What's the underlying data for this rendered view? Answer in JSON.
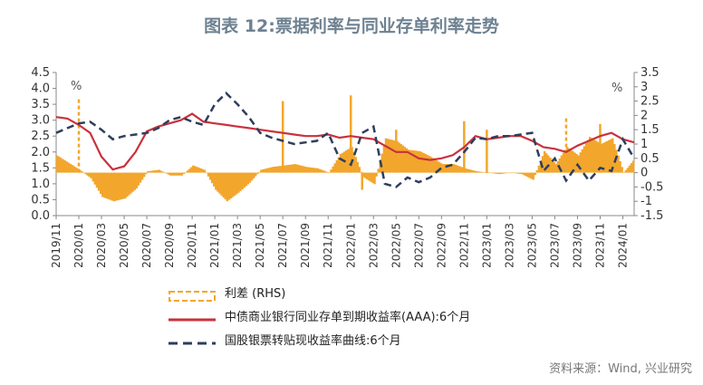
{
  "title": "图表 12:票据利率与同业存单利率走势",
  "source": "资料来源：Wind, 兴业研究",
  "chart_data": {
    "type": "line",
    "left_axis": {
      "unit": "%",
      "ylim": [
        0,
        4.5
      ],
      "ticks": [
        "0.0",
        "0.5",
        "1.0",
        "1.5",
        "2.0",
        "2.5",
        "3.0",
        "3.5",
        "4.0",
        "4.5"
      ]
    },
    "right_axis": {
      "unit": "%",
      "ylim": [
        -1.5,
        3.5
      ],
      "ticks": [
        "-1.5",
        "-1",
        "-0.5",
        "0",
        "0.5",
        "1",
        "1.5",
        "2",
        "2.5",
        "3",
        "3.5"
      ]
    },
    "x_range": [
      "2019-11",
      "2024-02"
    ],
    "x_tick_labels": [
      "2019/11",
      "2020/01",
      "2020/03",
      "2020/05",
      "2020/07",
      "2020/09",
      "2020/11",
      "2021/01",
      "2021/03",
      "2021/05",
      "2021/07",
      "2021/09",
      "2021/11",
      "2022/01",
      "2022/03",
      "2022/05",
      "2022/07",
      "2022/09",
      "2022/11",
      "2023/01",
      "2023/03",
      "2023/05",
      "2023/07",
      "2023/09",
      "2023/11",
      "2024/01"
    ],
    "colors": {
      "spread": "#f2a62c",
      "ncd": "#c8323c",
      "bill": "#2e3e5c"
    },
    "legend": [
      {
        "key": "spread",
        "label": "利差 (RHS)"
      },
      {
        "key": "ncd",
        "label": "中债商业银行同业存单到期收益率(AAA):6个月"
      },
      {
        "key": "bill",
        "label": "国股银票转贴现收益率曲线:6个月"
      }
    ],
    "series": [
      {
        "key": "ncd",
        "name": "中债商业银行同业存单到期收益率(AAA):6个月",
        "axis": "left",
        "x": [
          "2019-11",
          "2019-12",
          "2020-01",
          "2020-02",
          "2020-03",
          "2020-04",
          "2020-05",
          "2020-06",
          "2020-07",
          "2020-08",
          "2020-09",
          "2020-10",
          "2020-11",
          "2020-12",
          "2021-01",
          "2021-02",
          "2021-03",
          "2021-04",
          "2021-05",
          "2021-06",
          "2021-07",
          "2021-08",
          "2021-09",
          "2021-10",
          "2021-11",
          "2021-12",
          "2022-01",
          "2022-02",
          "2022-03",
          "2022-04",
          "2022-05",
          "2022-06",
          "2022-07",
          "2022-08",
          "2022-09",
          "2022-10",
          "2022-11",
          "2022-12",
          "2023-01",
          "2023-02",
          "2023-03",
          "2023-04",
          "2023-05",
          "2023-06",
          "2023-07",
          "2023-08",
          "2023-09",
          "2023-10",
          "2023-11",
          "2023-12",
          "2024-01",
          "2024-02"
        ],
        "y": [
          3.1,
          3.05,
          2.85,
          2.6,
          1.85,
          1.45,
          1.55,
          2.0,
          2.65,
          2.8,
          2.9,
          3.0,
          3.2,
          2.95,
          2.9,
          2.85,
          2.8,
          2.75,
          2.7,
          2.65,
          2.6,
          2.55,
          2.5,
          2.5,
          2.55,
          2.45,
          2.5,
          2.45,
          2.4,
          2.2,
          2.0,
          2.0,
          1.8,
          1.75,
          1.8,
          1.9,
          2.15,
          2.5,
          2.4,
          2.45,
          2.5,
          2.5,
          2.35,
          2.15,
          2.1,
          2.0,
          2.2,
          2.35,
          2.5,
          2.6,
          2.4,
          2.3
        ]
      },
      {
        "key": "bill",
        "name": "国股银票转贴现收益率曲线:6个月",
        "axis": "left",
        "x": [
          "2019-11",
          "2019-12",
          "2020-01",
          "2020-02",
          "2020-03",
          "2020-04",
          "2020-05",
          "2020-06",
          "2020-07",
          "2020-08",
          "2020-09",
          "2020-10",
          "2020-11",
          "2020-12",
          "2021-01",
          "2021-02",
          "2021-03",
          "2021-04",
          "2021-05",
          "2021-06",
          "2021-07",
          "2021-08",
          "2021-09",
          "2021-10",
          "2021-11",
          "2021-12",
          "2022-01",
          "2022-02",
          "2022-03",
          "2022-04",
          "2022-05",
          "2022-06",
          "2022-07",
          "2022-08",
          "2022-09",
          "2022-10",
          "2022-11",
          "2022-12",
          "2023-01",
          "2023-02",
          "2023-03",
          "2023-04",
          "2023-05",
          "2023-06",
          "2023-07",
          "2023-08",
          "2023-09",
          "2023-10",
          "2023-11",
          "2023-12",
          "2024-01",
          "2024-02"
        ],
        "y": [
          2.6,
          2.75,
          2.9,
          2.95,
          2.7,
          2.4,
          2.5,
          2.55,
          2.6,
          2.75,
          3.0,
          3.1,
          2.95,
          2.85,
          3.5,
          3.85,
          3.5,
          3.1,
          2.6,
          2.45,
          2.35,
          2.25,
          2.3,
          2.35,
          2.6,
          1.8,
          1.6,
          2.6,
          2.8,
          1.0,
          0.9,
          1.2,
          1.05,
          1.2,
          1.5,
          1.6,
          2.0,
          2.45,
          2.4,
          2.5,
          2.5,
          2.55,
          2.6,
          1.4,
          1.8,
          1.1,
          1.6,
          1.1,
          1.5,
          1.4,
          2.4,
          1.8
        ]
      },
      {
        "key": "spread",
        "name": "利差 (RHS)",
        "axis": "right",
        "x": [
          "2019-11",
          "2019-12",
          "2020-01",
          "2020-02",
          "2020-03",
          "2020-04",
          "2020-05",
          "2020-06",
          "2020-07",
          "2020-08",
          "2020-09",
          "2020-10",
          "2020-11",
          "2020-12",
          "2021-01",
          "2021-02",
          "2021-03",
          "2021-04",
          "2021-05",
          "2021-06",
          "2021-07",
          "2021-08",
          "2021-09",
          "2021-10",
          "2021-11",
          "2021-12",
          "2022-01",
          "2022-02",
          "2022-03",
          "2022-04",
          "2022-05",
          "2022-06",
          "2022-07",
          "2022-08",
          "2022-09",
          "2022-10",
          "2022-11",
          "2022-12",
          "2023-01",
          "2023-02",
          "2023-03",
          "2023-04",
          "2023-05",
          "2023-06",
          "2023-07",
          "2023-08",
          "2023-09",
          "2023-10",
          "2023-11",
          "2023-12",
          "2024-01",
          "2024-02"
        ],
        "y": [
          0.6,
          0.35,
          0.1,
          -0.2,
          -0.85,
          -1.0,
          -0.9,
          -0.55,
          0.05,
          0.1,
          -0.1,
          -0.1,
          0.25,
          0.1,
          -0.6,
          -1.0,
          -0.7,
          -0.35,
          0.1,
          0.2,
          0.25,
          0.3,
          0.2,
          0.15,
          0.0,
          0.65,
          0.9,
          -0.15,
          -0.4,
          1.2,
          1.1,
          0.8,
          0.75,
          0.55,
          0.3,
          0.3,
          0.15,
          0.05,
          0.0,
          -0.05,
          0.0,
          -0.05,
          -0.25,
          0.75,
          0.3,
          0.9,
          0.6,
          1.25,
          1.0,
          1.2,
          0.0,
          0.5
        ],
        "spikes": [
          {
            "x": "2020-01",
            "y": 2.6
          },
          {
            "x": "2021-07",
            "y": 2.5
          },
          {
            "x": "2022-01",
            "y": 2.7
          },
          {
            "x": "2022-02",
            "y": -0.6
          },
          {
            "x": "2022-05",
            "y": 1.5
          },
          {
            "x": "2022-11",
            "y": 1.8
          },
          {
            "x": "2023-01",
            "y": 1.5
          },
          {
            "x": "2023-08",
            "y": 1.9
          },
          {
            "x": "2023-11",
            "y": 1.7
          }
        ]
      }
    ]
  }
}
